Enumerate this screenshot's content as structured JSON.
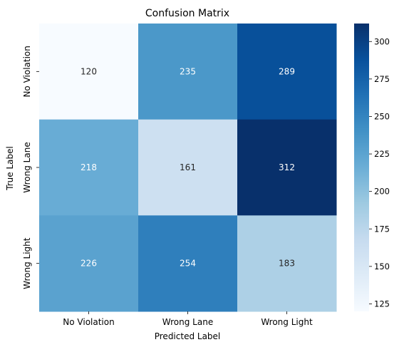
{
  "chart_data": {
    "type": "heatmap",
    "title": "Confusion Matrix",
    "xlabel": "Predicted Label",
    "ylabel": "True Label",
    "x_categories": [
      "No Violation",
      "Wrong Lane",
      "Wrong Light"
    ],
    "y_categories": [
      "No Violation",
      "Wrong Lane",
      "Wrong Light"
    ],
    "values": [
      [
        120,
        235,
        289
      ],
      [
        218,
        161,
        312
      ],
      [
        226,
        254,
        183
      ]
    ],
    "colormap": "Blues",
    "color_range": [
      120,
      312
    ],
    "colorbar_ticks": [
      125,
      150,
      175,
      200,
      225,
      250,
      275,
      300
    ],
    "annotation_colors": {
      "light_cells": "#262626",
      "dark_cells": "#ffffff"
    }
  }
}
